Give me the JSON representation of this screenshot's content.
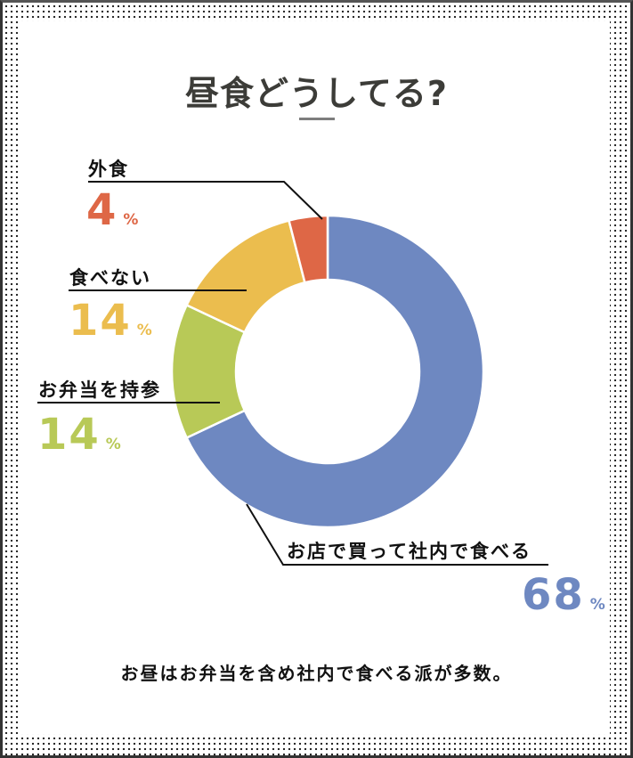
{
  "title": "昼食どうしてる?",
  "summary": "お昼はお弁当を含め社内で食べる派が多数。",
  "colors": {
    "eat_in_office": "#6e88c1",
    "bring_lunch": "#b8c957",
    "skip": "#ebbd4e",
    "eat_out": "#de6746",
    "title": "#3c3c38"
  },
  "labels": {
    "eat_out": {
      "name": "外食",
      "value": "4",
      "unit": "%"
    },
    "skip": {
      "name": "食べない",
      "value": "14",
      "unit": "%"
    },
    "bring_lunch": {
      "name": "お弁当を持参",
      "value": "14",
      "unit": "%"
    },
    "eat_in_office": {
      "name": "お店で買って社内で食べる",
      "value": "68",
      "unit": "%"
    }
  },
  "chart_data": {
    "type": "pie",
    "subtype": "donut",
    "title": "昼食どうしてる?",
    "categories": [
      "お店で買って社内で食べる",
      "お弁当を持参",
      "食べない",
      "外食"
    ],
    "values": [
      68,
      14,
      14,
      4
    ],
    "unit": "%",
    "colors": [
      "#6e88c1",
      "#b8c957",
      "#ebbd4e",
      "#de6746"
    ],
    "start_angle": "12 o'clock, clockwise",
    "legend": "none (leader-line labels)",
    "annotation": "お昼はお弁当を含め社内で食べる派が多数。"
  }
}
